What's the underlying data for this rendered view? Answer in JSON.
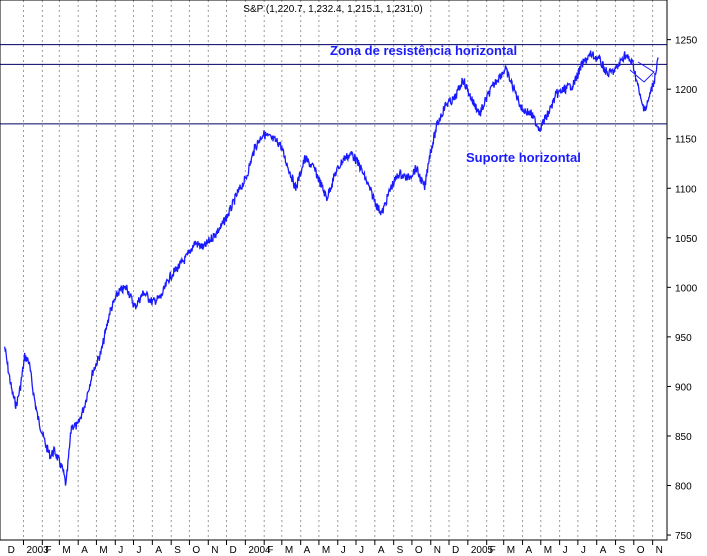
{
  "chart_data": {
    "type": "line",
    "title": "S&P (1,220.7, 1,232.4, 1,215.1, 1,231.0)",
    "xlabel": "",
    "ylabel": "",
    "ylim": [
      745,
      1290
    ],
    "y_ticks": [
      750,
      800,
      850,
      900,
      950,
      1000,
      1050,
      1100,
      1150,
      1200,
      1250
    ],
    "x_ticks": [
      "D",
      "2003",
      "F",
      "M",
      "A",
      "M",
      "J",
      "J",
      "A",
      "S",
      "O",
      "N",
      "D",
      "2004",
      "F",
      "M",
      "A",
      "M",
      "J",
      "J",
      "A",
      "S",
      "O",
      "N",
      "D",
      "2005",
      "F",
      "M",
      "A",
      "M",
      "J",
      "J",
      "A",
      "S",
      "O",
      "N"
    ],
    "grid": {
      "vertical": true,
      "horizontal": false
    },
    "horizontal_lines": [
      1245,
      1225,
      1165
    ],
    "annotations": [
      {
        "text": "Zona de resistência horizontal"
      },
      {
        "text": "Suporte horizontal"
      }
    ],
    "series": [
      {
        "color": "#1a1aff",
        "x": [
          "2002-12-01",
          "2002-12-06",
          "2002-12-13",
          "2002-12-20",
          "2002-12-27",
          "2003-01-03",
          "2003-01-10",
          "2003-01-17",
          "2003-01-24",
          "2003-01-31",
          "2003-02-07",
          "2003-02-14",
          "2003-02-21",
          "2003-02-28",
          "2003-03-07",
          "2003-03-12",
          "2003-03-21",
          "2003-03-31",
          "2003-04-11",
          "2003-04-25",
          "2003-05-09",
          "2003-05-23",
          "2003-06-06",
          "2003-06-20",
          "2003-07-03",
          "2003-07-18",
          "2003-08-01",
          "2003-08-15",
          "2003-08-29",
          "2003-09-12",
          "2003-09-26",
          "2003-10-10",
          "2003-10-24",
          "2003-11-07",
          "2003-11-21",
          "2003-12-05",
          "2003-12-19",
          "2004-01-02",
          "2004-01-16",
          "2004-01-30",
          "2004-02-13",
          "2004-02-27",
          "2004-03-12",
          "2004-03-24",
          "2004-04-08",
          "2004-04-23",
          "2004-05-07",
          "2004-05-14",
          "2004-05-28",
          "2004-06-11",
          "2004-06-25",
          "2004-07-09",
          "2004-07-23",
          "2004-08-06",
          "2004-08-13",
          "2004-08-27",
          "2004-09-10",
          "2004-09-24",
          "2004-10-08",
          "2004-10-22",
          "2004-10-29",
          "2004-11-12",
          "2004-11-26",
          "2004-12-10",
          "2004-12-24",
          "2005-01-07",
          "2005-01-21",
          "2005-02-04",
          "2005-02-18",
          "2005-03-04",
          "2005-03-18",
          "2005-03-31",
          "2005-04-15",
          "2005-04-29",
          "2005-05-13",
          "2005-05-27",
          "2005-06-10",
          "2005-06-24",
          "2005-07-08",
          "2005-07-22",
          "2005-08-05",
          "2005-08-19",
          "2005-09-02",
          "2005-09-16",
          "2005-09-30",
          "2005-10-14",
          "2005-10-21",
          "2005-11-04",
          "2005-11-10"
        ],
        "y": [
          940,
          920,
          895,
          880,
          900,
          930,
          925,
          895,
          870,
          855,
          840,
          830,
          835,
          825,
          815,
          800,
          860,
          860,
          880,
          915,
          935,
          975,
          995,
          1000,
          980,
          995,
          985,
          990,
          1010,
          1020,
          1030,
          1045,
          1040,
          1050,
          1060,
          1075,
          1095,
          1110,
          1140,
          1155,
          1150,
          1145,
          1120,
          1100,
          1130,
          1120,
          1100,
          1090,
          1115,
          1130,
          1135,
          1120,
          1100,
          1080,
          1075,
          1100,
          1115,
          1110,
          1120,
          1100,
          1130,
          1165,
          1185,
          1190,
          1210,
          1190,
          1175,
          1195,
          1210,
          1220,
          1200,
          1180,
          1175,
          1160,
          1175,
          1195,
          1200,
          1205,
          1225,
          1235,
          1230,
          1215,
          1220,
          1235,
          1225,
          1185,
          1180,
          1210,
          1232
        ]
      }
    ]
  }
}
